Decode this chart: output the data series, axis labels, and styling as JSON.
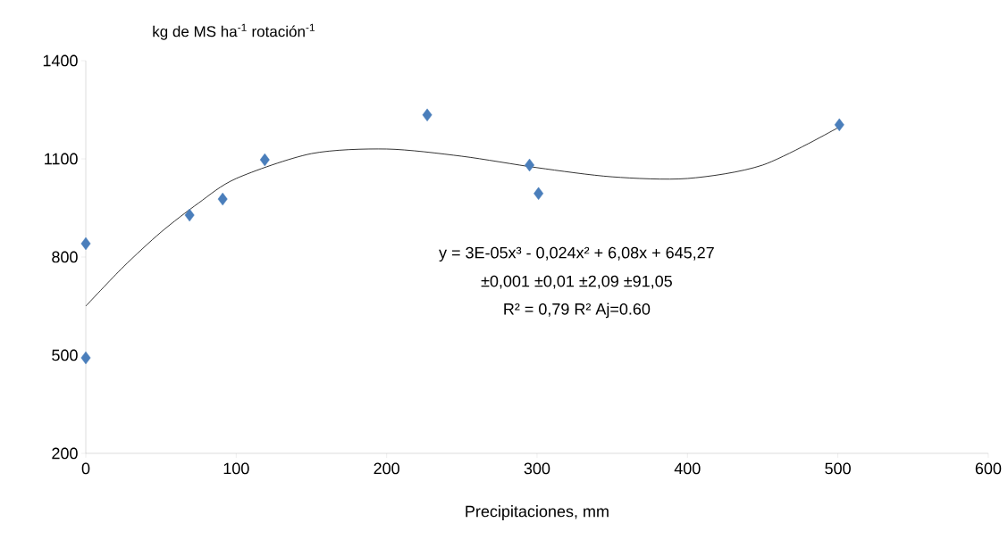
{
  "chart_data": {
    "type": "scatter",
    "ylabel": "kg de MS ha$^{-1}$ rotación$^{-1}$",
    "xlabel": "Precipitaciones, mm",
    "xlim": [
      0,
      600
    ],
    "xticks": [
      0,
      100,
      200,
      300,
      400,
      500,
      600
    ],
    "ylim": [
      200,
      1400
    ],
    "yticks": [
      200,
      500,
      800,
      1100,
      1400
    ],
    "grid": false,
    "marker": "diamond",
    "series": [
      {
        "color": "#4a7ebb",
        "x": [
          0,
          0,
          69,
          91,
          119,
          227,
          295,
          301,
          501
        ],
        "values": [
          841,
          492,
          928,
          977,
          1097,
          1234,
          1081,
          994,
          1204
        ]
      },
      {
        "type": "line",
        "color": "#000000",
        "marker": "none",
        "x": [
          0,
          25,
          50,
          75,
          100,
          150,
          200,
          250,
          300,
          350,
          400,
          450,
          500
        ],
        "values": [
          650,
          770,
          876,
          965,
          1040,
          1116,
          1130,
          1108,
          1073,
          1045,
          1040,
          1081,
          1195
        ]
      }
    ],
    "annotations": [
      "y = 3E-05x³ - 0,024x² + 6,08x + 645,27",
      "±0,001 ±0,01 ±2,09 ±91,05",
      "R² = 0,79 R² Aj=0.60"
    ]
  }
}
